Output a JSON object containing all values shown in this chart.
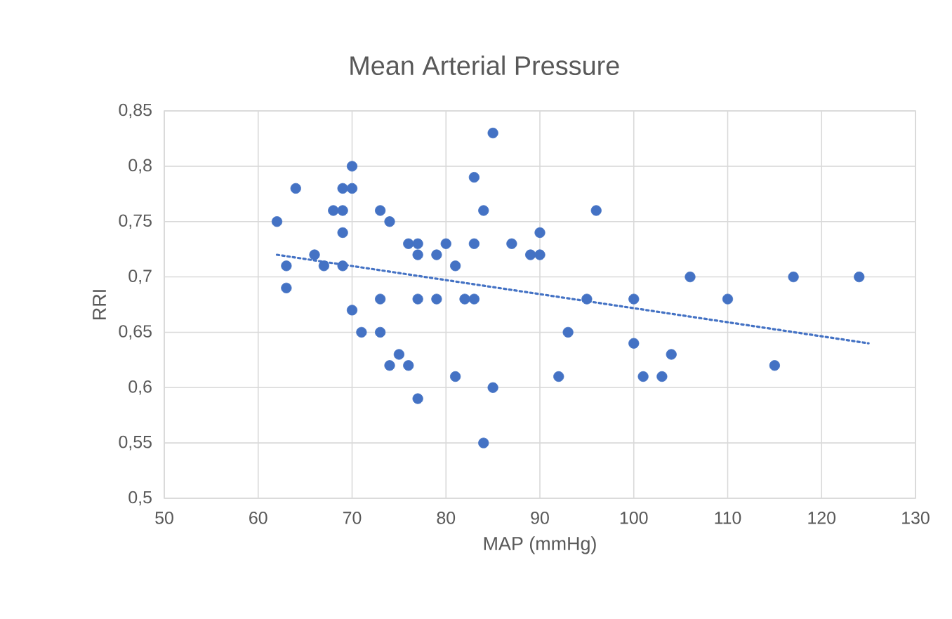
{
  "chart_data": {
    "type": "scatter",
    "title": "Mean Arterial Pressure",
    "xlabel": "MAP (mmHg)",
    "ylabel": "RRI",
    "xlim": [
      50,
      130
    ],
    "xticks": [
      50,
      60,
      70,
      80,
      90,
      100,
      110,
      120,
      130
    ],
    "ylim": [
      0.5,
      0.85
    ],
    "yticks": [
      {
        "value": 0.5,
        "label": "0,5"
      },
      {
        "value": 0.55,
        "label": "0,55"
      },
      {
        "value": 0.6,
        "label": "0,6"
      },
      {
        "value": 0.65,
        "label": "0,65"
      },
      {
        "value": 0.7,
        "label": "0,7"
      },
      {
        "value": 0.75,
        "label": "0,75"
      },
      {
        "value": 0.8,
        "label": "0,8"
      },
      {
        "value": 0.85,
        "label": "0,85"
      }
    ],
    "grid": true,
    "series": [
      {
        "color": "#4472c4",
        "marker": "circle",
        "x": [
          62,
          63,
          63,
          64,
          66,
          67,
          68,
          69,
          69,
          69,
          69,
          70,
          70,
          70,
          71,
          73,
          73,
          73,
          74,
          74,
          75,
          76,
          76,
          77,
          77,
          77,
          77,
          79,
          79,
          80,
          81,
          81,
          82,
          83,
          83,
          83,
          84,
          84,
          85,
          85,
          87,
          89,
          90,
          90,
          92,
          93,
          95,
          96,
          100,
          100,
          101,
          103,
          104,
          106,
          110,
          115,
          117,
          124
        ],
        "values": [
          0.75,
          0.71,
          0.69,
          0.78,
          0.72,
          0.71,
          0.76,
          0.78,
          0.76,
          0.74,
          0.71,
          0.8,
          0.78,
          0.67,
          0.65,
          0.76,
          0.68,
          0.65,
          0.75,
          0.62,
          0.63,
          0.73,
          0.62,
          0.73,
          0.72,
          0.68,
          0.59,
          0.72,
          0.68,
          0.73,
          0.71,
          0.61,
          0.68,
          0.79,
          0.73,
          0.68,
          0.76,
          0.55,
          0.83,
          0.6,
          0.73,
          0.72,
          0.74,
          0.72,
          0.61,
          0.65,
          0.68,
          0.76,
          0.68,
          0.64,
          0.61,
          0.61,
          0.63,
          0.7,
          0.68,
          0.62,
          0.7,
          0.7
        ]
      },
      {
        "type": "line",
        "color": "#4472c4",
        "marker": "none",
        "line_style": "dotted",
        "x": [
          62,
          125
        ],
        "values": [
          0.72,
          0.64
        ]
      }
    ]
  }
}
